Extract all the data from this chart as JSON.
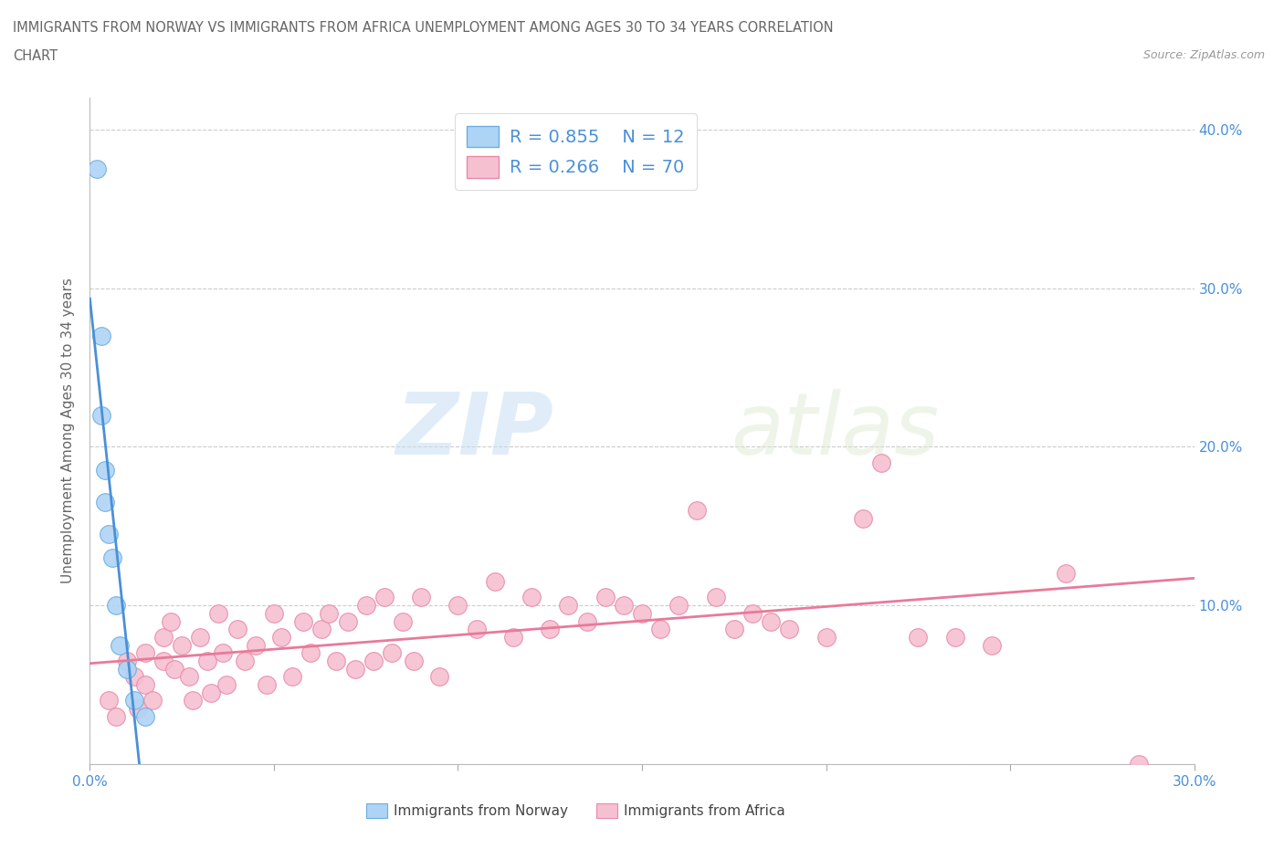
{
  "title_line1": "IMMIGRANTS FROM NORWAY VS IMMIGRANTS FROM AFRICA UNEMPLOYMENT AMONG AGES 30 TO 34 YEARS CORRELATION",
  "title_line2": "CHART",
  "source_text": "Source: ZipAtlas.com",
  "ylabel": "Unemployment Among Ages 30 to 34 years",
  "xlim": [
    0.0,
    0.3
  ],
  "ylim": [
    0.0,
    0.42
  ],
  "x_ticks": [
    0.0,
    0.05,
    0.1,
    0.15,
    0.2,
    0.25,
    0.3
  ],
  "x_tick_labels": [
    "0.0%",
    "",
    "",
    "",
    "",
    "",
    "30.0%"
  ],
  "y_ticks": [
    0.0,
    0.1,
    0.2,
    0.3,
    0.4
  ],
  "y_tick_labels": [
    "",
    "10.0%",
    "20.0%",
    "30.0%",
    "40.0%"
  ],
  "norway_R": 0.855,
  "norway_N": 12,
  "africa_R": 0.266,
  "africa_N": 70,
  "norway_color": "#aed4f5",
  "africa_color": "#f5c0d0",
  "norway_edge_color": "#6aaee0",
  "africa_edge_color": "#e88aaa",
  "norway_line_color": "#4a90d9",
  "africa_line_color": "#e87a9a",
  "norway_scatter_x": [
    0.002,
    0.003,
    0.003,
    0.004,
    0.004,
    0.005,
    0.006,
    0.007,
    0.008,
    0.01,
    0.012,
    0.015
  ],
  "norway_scatter_y": [
    0.375,
    0.27,
    0.22,
    0.185,
    0.165,
    0.145,
    0.13,
    0.1,
    0.075,
    0.06,
    0.04,
    0.03
  ],
  "africa_scatter_x": [
    0.005,
    0.007,
    0.01,
    0.012,
    0.013,
    0.015,
    0.015,
    0.017,
    0.02,
    0.02,
    0.022,
    0.023,
    0.025,
    0.027,
    0.028,
    0.03,
    0.032,
    0.033,
    0.035,
    0.036,
    0.037,
    0.04,
    0.042,
    0.045,
    0.048,
    0.05,
    0.052,
    0.055,
    0.058,
    0.06,
    0.063,
    0.065,
    0.067,
    0.07,
    0.072,
    0.075,
    0.077,
    0.08,
    0.082,
    0.085,
    0.088,
    0.09,
    0.095,
    0.1,
    0.105,
    0.11,
    0.115,
    0.12,
    0.125,
    0.13,
    0.135,
    0.14,
    0.145,
    0.15,
    0.155,
    0.16,
    0.165,
    0.17,
    0.175,
    0.18,
    0.185,
    0.19,
    0.2,
    0.21,
    0.215,
    0.225,
    0.235,
    0.245,
    0.265,
    0.285
  ],
  "africa_scatter_y": [
    0.04,
    0.03,
    0.065,
    0.055,
    0.035,
    0.07,
    0.05,
    0.04,
    0.08,
    0.065,
    0.09,
    0.06,
    0.075,
    0.055,
    0.04,
    0.08,
    0.065,
    0.045,
    0.095,
    0.07,
    0.05,
    0.085,
    0.065,
    0.075,
    0.05,
    0.095,
    0.08,
    0.055,
    0.09,
    0.07,
    0.085,
    0.095,
    0.065,
    0.09,
    0.06,
    0.1,
    0.065,
    0.105,
    0.07,
    0.09,
    0.065,
    0.105,
    0.055,
    0.1,
    0.085,
    0.115,
    0.08,
    0.105,
    0.085,
    0.1,
    0.09,
    0.105,
    0.1,
    0.095,
    0.085,
    0.1,
    0.16,
    0.105,
    0.085,
    0.095,
    0.09,
    0.085,
    0.08,
    0.155,
    0.19,
    0.08,
    0.08,
    0.075,
    0.12,
    0.0
  ],
  "watermark_zip": "ZIP",
  "watermark_atlas": "atlas",
  "background_color": "#ffffff",
  "grid_color": "#cccccc",
  "legend_box_color": "#ffffff",
  "legend_text_color": "#4a90d9",
  "title_color": "#666666",
  "axis_label_color": "#666666",
  "tick_label_color": "#4a90d9",
  "bottom_legend_norway": "Immigrants from Norway",
  "bottom_legend_africa": "Immigrants from Africa"
}
